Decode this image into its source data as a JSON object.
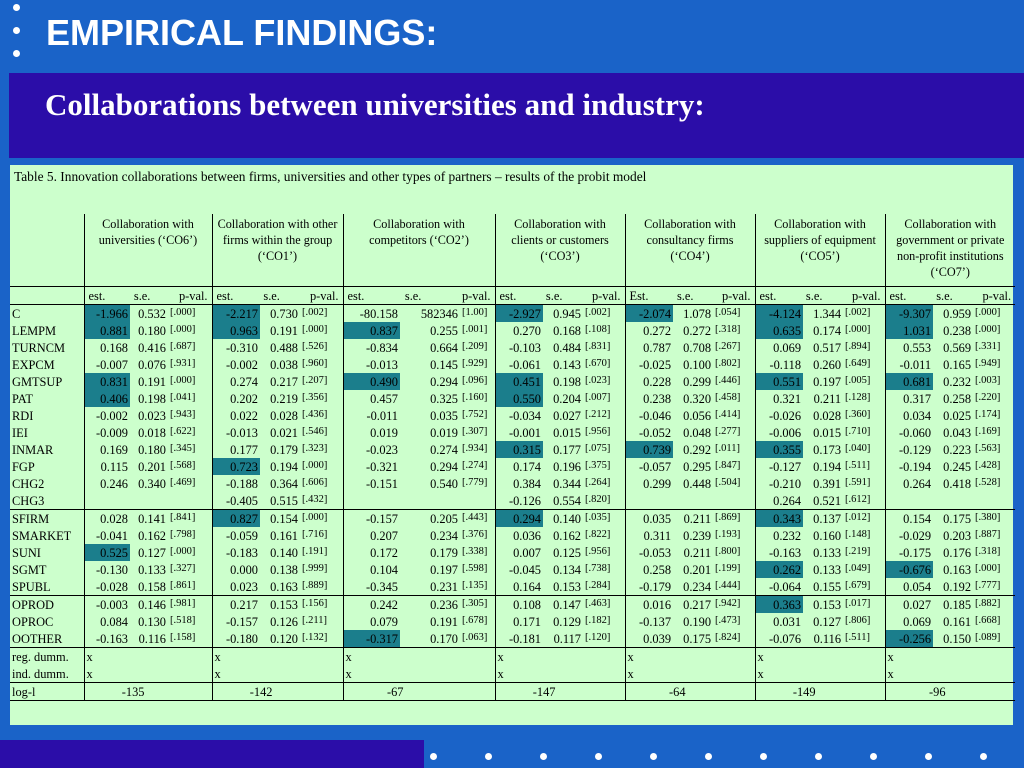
{
  "slide": {
    "title": "EMPIRICAL FINDINGS:",
    "subtitle": "Collaborations between universities and industry:"
  },
  "colors": {
    "background": "#1a63c8",
    "band": "#2b0da8",
    "table_bg": "#ccffcc",
    "highlight": "#1b7e8c"
  },
  "table": {
    "caption": "Table 5. Innovation collaborations between firms, universities and other types of partners – results of the probit model",
    "groups": [
      "Collaboration with universities (‘CO6’)",
      "Collaboration with other firms within the group (‘CO1’)",
      "Collaboration with competitors (‘CO2’)",
      "Collaboration with clients or customers (‘CO3’)",
      "Collaboration with consultancy firms (‘CO4’)",
      "Collaboration with suppliers of equipment (‘CO5’)",
      "Collaboration with government or private non-profit institutions (‘CO7’)"
    ],
    "subheaders": [
      [
        "est.",
        "s.e.",
        "p-val."
      ],
      [
        "est.",
        "s.e.",
        "p-val."
      ],
      [
        "est.",
        "s.e.",
        "p-val."
      ],
      [
        "est.",
        "s.e.",
        "p-val."
      ],
      [
        "Est.",
        "s.e.",
        "p-val."
      ],
      [
        "est.",
        "s.e.",
        "p-val."
      ],
      [
        "est.",
        "s.e.",
        "p-val."
      ]
    ],
    "rows": [
      {
        "label": "C",
        "sep": true,
        "cells": [
          [
            "-1.966",
            "0.532",
            "[.000]",
            true
          ],
          [
            "-2.217",
            "0.730",
            "[.002]",
            true
          ],
          [
            "-80.158",
            "582346",
            "[1.00]",
            false
          ],
          [
            "-2.927",
            "0.945",
            "[.002]",
            true
          ],
          [
            "-2.074",
            "1.078",
            "[.054]",
            true
          ],
          [
            "-4.124",
            "1.344",
            "[.002]",
            true
          ],
          [
            "-9.307",
            "0.959",
            "[.000]",
            true
          ]
        ]
      },
      {
        "label": "LEMPM",
        "cells": [
          [
            "0.881",
            "0.180",
            "[.000]",
            true
          ],
          [
            "0.963",
            "0.191",
            "[.000]",
            true
          ],
          [
            "0.837",
            "0.255",
            "[.001]",
            true
          ],
          [
            "0.270",
            "0.168",
            "[.108]",
            false
          ],
          [
            "0.272",
            "0.272",
            "[.318]",
            false
          ],
          [
            "0.635",
            "0.174",
            "[.000]",
            true
          ],
          [
            "1.031",
            "0.238",
            "[.000]",
            true
          ]
        ]
      },
      {
        "label": "TURNCM",
        "cells": [
          [
            "0.168",
            "0.416",
            "[.687]",
            false
          ],
          [
            "-0.310",
            "0.488",
            "[.526]",
            false
          ],
          [
            "-0.834",
            "0.664",
            "[.209]",
            false
          ],
          [
            "-0.103",
            "0.484",
            "[.831]",
            false
          ],
          [
            "0.787",
            "0.708",
            "[.267]",
            false
          ],
          [
            "0.069",
            "0.517",
            "[.894]",
            false
          ],
          [
            "0.553",
            "0.569",
            "[.331]",
            false
          ]
        ]
      },
      {
        "label": "EXPCM",
        "cells": [
          [
            "-0.007",
            "0.076",
            "[.931]",
            false
          ],
          [
            "-0.002",
            "0.038",
            "[.960]",
            false
          ],
          [
            "-0.013",
            "0.145",
            "[.929]",
            false
          ],
          [
            "-0.061",
            "0.143",
            "[.670]",
            false
          ],
          [
            "-0.025",
            "0.100",
            "[.802]",
            false
          ],
          [
            "-0.118",
            "0.260",
            "[.649]",
            false
          ],
          [
            "-0.011",
            "0.165",
            "[.949]",
            false
          ]
        ]
      },
      {
        "label": "GMTSUP",
        "cells": [
          [
            "0.831",
            "0.191",
            "[.000]",
            true
          ],
          [
            "0.274",
            "0.217",
            "[.207]",
            false
          ],
          [
            "0.490",
            "0.294",
            "[.096]",
            true
          ],
          [
            "0.451",
            "0.198",
            "[.023]",
            true
          ],
          [
            "0.228",
            "0.299",
            "[.446]",
            false
          ],
          [
            "0.551",
            "0.197",
            "[.005]",
            true
          ],
          [
            "0.681",
            "0.232",
            "[.003]",
            true
          ]
        ]
      },
      {
        "label": "PAT",
        "cells": [
          [
            "0.406",
            "0.198",
            "[.041]",
            true
          ],
          [
            "0.202",
            "0.219",
            "[.356]",
            false
          ],
          [
            "0.457",
            "0.325",
            "[.160]",
            false
          ],
          [
            "0.550",
            "0.204",
            "[.007]",
            true
          ],
          [
            "0.238",
            "0.320",
            "[.458]",
            false
          ],
          [
            "0.321",
            "0.211",
            "[.128]",
            false
          ],
          [
            "0.317",
            "0.258",
            "[.220]",
            false
          ]
        ]
      },
      {
        "label": "RDI",
        "cells": [
          [
            "-0.002",
            "0.023",
            "[.943]",
            false
          ],
          [
            "0.022",
            "0.028",
            "[.436]",
            false
          ],
          [
            "-0.011",
            "0.035",
            "[.752]",
            false
          ],
          [
            "-0.034",
            "0.027",
            "[.212]",
            false
          ],
          [
            "-0.046",
            "0.056",
            "[.414]",
            false
          ],
          [
            "-0.026",
            "0.028",
            "[.360]",
            false
          ],
          [
            "0.034",
            "0.025",
            "[.174]",
            false
          ]
        ]
      },
      {
        "label": "IEI",
        "cells": [
          [
            "-0.009",
            "0.018",
            "[.622]",
            false
          ],
          [
            "-0.013",
            "0.021",
            "[.546]",
            false
          ],
          [
            "0.019",
            "0.019",
            "[.307]",
            false
          ],
          [
            "-0.001",
            "0.015",
            "[.956]",
            false
          ],
          [
            "-0.052",
            "0.048",
            "[.277]",
            false
          ],
          [
            "-0.006",
            "0.015",
            "[.710]",
            false
          ],
          [
            "-0.060",
            "0.043",
            "[.169]",
            false
          ]
        ]
      },
      {
        "label": "INMAR",
        "cells": [
          [
            "0.169",
            "0.180",
            "[.345]",
            false
          ],
          [
            "0.177",
            "0.179",
            "[.323]",
            false
          ],
          [
            "-0.023",
            "0.274",
            "[.934]",
            false
          ],
          [
            "0.315",
            "0.177",
            "[.075]",
            true
          ],
          [
            "0.739",
            "0.292",
            "[.011]",
            true
          ],
          [
            "0.355",
            "0.173",
            "[.040]",
            true
          ],
          [
            "-0.129",
            "0.223",
            "[.563]",
            false
          ]
        ]
      },
      {
        "label": "FGP",
        "cells": [
          [
            "0.115",
            "0.201",
            "[.568]",
            false
          ],
          [
            "0.723",
            "0.194",
            "[.000]",
            true
          ],
          [
            "-0.321",
            "0.294",
            "[.274]",
            false
          ],
          [
            "0.174",
            "0.196",
            "[.375]",
            false
          ],
          [
            "-0.057",
            "0.295",
            "[.847]",
            false
          ],
          [
            "-0.127",
            "0.194",
            "[.511]",
            false
          ],
          [
            "-0.194",
            "0.245",
            "[.428]",
            false
          ]
        ]
      },
      {
        "label": "CHG2",
        "cells": [
          [
            "0.246",
            "0.340",
            "[.469]",
            false
          ],
          [
            "-0.188",
            "0.364",
            "[.606]",
            false
          ],
          [
            "-0.151",
            "0.540",
            "[.779]",
            false
          ],
          [
            "0.384",
            "0.344",
            "[.264]",
            false
          ],
          [
            "0.299",
            "0.448",
            "[.504]",
            false
          ],
          [
            "-0.210",
            "0.391",
            "[.591]",
            false
          ],
          [
            "0.264",
            "0.418",
            "[.528]",
            false
          ]
        ]
      },
      {
        "label": "CHG3",
        "cells": [
          [
            "",
            "",
            "",
            false
          ],
          [
            "-0.405",
            "0.515",
            "[.432]",
            false
          ],
          [
            "",
            "",
            "",
            false
          ],
          [
            "-0.126",
            "0.554",
            "[.820]",
            false
          ],
          [
            "",
            "",
            "",
            false
          ],
          [
            "0.264",
            "0.521",
            "[.612]",
            false
          ],
          [
            "",
            "",
            "",
            false
          ]
        ]
      },
      {
        "label": "SFIRM",
        "sep": true,
        "cells": [
          [
            "0.028",
            "0.141",
            "[.841]",
            false
          ],
          [
            "0.827",
            "0.154",
            "[.000]",
            true
          ],
          [
            "-0.157",
            "0.205",
            "[.443]",
            false
          ],
          [
            "0.294",
            "0.140",
            "[.035]",
            true
          ],
          [
            "0.035",
            "0.211",
            "[.869]",
            false
          ],
          [
            "0.343",
            "0.137",
            "[.012]",
            true
          ],
          [
            "0.154",
            "0.175",
            "[.380]",
            false
          ]
        ]
      },
      {
        "label": "SMARKET",
        "cells": [
          [
            "-0.041",
            "0.162",
            "[.798]",
            false
          ],
          [
            "-0.059",
            "0.161",
            "[.716]",
            false
          ],
          [
            "0.207",
            "0.234",
            "[.376]",
            false
          ],
          [
            "0.036",
            "0.162",
            "[.822]",
            false
          ],
          [
            "0.311",
            "0.239",
            "[.193]",
            false
          ],
          [
            "0.232",
            "0.160",
            "[.148]",
            false
          ],
          [
            "-0.029",
            "0.203",
            "[.887]",
            false
          ]
        ]
      },
      {
        "label": "SUNI",
        "cells": [
          [
            "0.525",
            "0.127",
            "[.000]",
            true
          ],
          [
            "-0.183",
            "0.140",
            "[.191]",
            false
          ],
          [
            "0.172",
            "0.179",
            "[.338]",
            false
          ],
          [
            "0.007",
            "0.125",
            "[.956]",
            false
          ],
          [
            "-0.053",
            "0.211",
            "[.800]",
            false
          ],
          [
            "-0.163",
            "0.133",
            "[.219]",
            false
          ],
          [
            "-0.175",
            "0.176",
            "[.318]",
            false
          ]
        ]
      },
      {
        "label": "SGMT",
        "cells": [
          [
            "-0.130",
            "0.133",
            "[.327]",
            false
          ],
          [
            "0.000",
            "0.138",
            "[.999]",
            false
          ],
          [
            "0.104",
            "0.197",
            "[.598]",
            false
          ],
          [
            "-0.045",
            "0.134",
            "[.738]",
            false
          ],
          [
            "0.258",
            "0.201",
            "[.199]",
            false
          ],
          [
            "0.262",
            "0.133",
            "[.049]",
            true
          ],
          [
            "-0.676",
            "0.163",
            "[.000]",
            true
          ]
        ]
      },
      {
        "label": "SPUBL",
        "cells": [
          [
            "-0.028",
            "0.158",
            "[.861]",
            false
          ],
          [
            "0.023",
            "0.163",
            "[.889]",
            false
          ],
          [
            "-0.345",
            "0.231",
            "[.135]",
            false
          ],
          [
            "0.164",
            "0.153",
            "[.284]",
            false
          ],
          [
            "-0.179",
            "0.234",
            "[.444]",
            false
          ],
          [
            "-0.064",
            "0.155",
            "[.679]",
            false
          ],
          [
            "0.054",
            "0.192",
            "[.777]",
            false
          ]
        ]
      },
      {
        "label": "OPROD",
        "sep": true,
        "cells": [
          [
            "-0.003",
            "0.146",
            "[.981]",
            false
          ],
          [
            "0.217",
            "0.153",
            "[.156]",
            false
          ],
          [
            "0.242",
            "0.236",
            "[.305]",
            false
          ],
          [
            "0.108",
            "0.147",
            "[.463]",
            false
          ],
          [
            "0.016",
            "0.217",
            "[.942]",
            false
          ],
          [
            "0.363",
            "0.153",
            "[.017]",
            true
          ],
          [
            "0.027",
            "0.185",
            "[.882]",
            false
          ]
        ]
      },
      {
        "label": "OPROC",
        "cells": [
          [
            "0.084",
            "0.130",
            "[.518]",
            false
          ],
          [
            "-0.157",
            "0.126",
            "[.211]",
            false
          ],
          [
            "0.079",
            "0.191",
            "[.678]",
            false
          ],
          [
            "0.171",
            "0.129",
            "[.182]",
            false
          ],
          [
            "-0.137",
            "0.190",
            "[.473]",
            false
          ],
          [
            "0.031",
            "0.127",
            "[.806]",
            false
          ],
          [
            "0.069",
            "0.161",
            "[.668]",
            false
          ]
        ]
      },
      {
        "label": "OOTHER",
        "cells": [
          [
            "-0.163",
            "0.116",
            "[.158]",
            false
          ],
          [
            "-0.180",
            "0.120",
            "[.132]",
            false
          ],
          [
            "-0.317",
            "0.170",
            "[.063]",
            true
          ],
          [
            "-0.181",
            "0.117",
            "[.120]",
            false
          ],
          [
            "0.039",
            "0.175",
            "[.824]",
            false
          ],
          [
            "-0.076",
            "0.116",
            "[.511]",
            false
          ],
          [
            "-0.256",
            "0.150",
            "[.089]",
            true
          ]
        ]
      }
    ],
    "dummies": [
      {
        "label": "reg. dumm.",
        "marks": [
          "x",
          "x",
          "x",
          "x",
          "x",
          "x",
          "x"
        ]
      },
      {
        "label": "ind. dumm.",
        "marks": [
          "x",
          "x",
          "x",
          "x",
          "x",
          "x",
          "x"
        ]
      }
    ],
    "loglik": {
      "label": "log-l",
      "values": [
        "-135",
        "-142",
        "-67",
        "-147",
        "-64",
        "-149",
        "-96"
      ]
    }
  }
}
